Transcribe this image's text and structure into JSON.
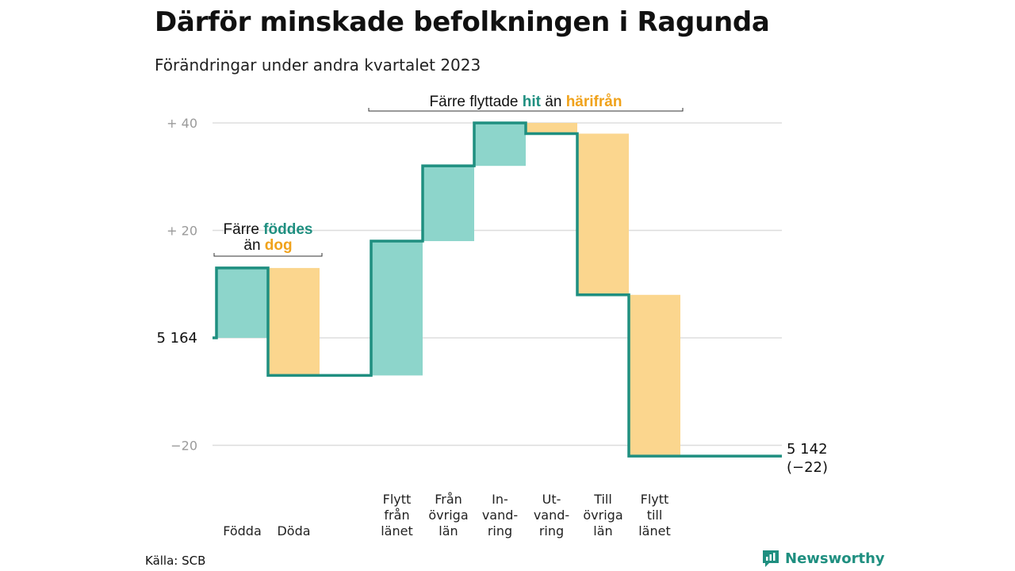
{
  "header": {
    "title": "Därför minskade befolkningen i Ragunda",
    "subtitle": "Förändringar under andra kvartalet 2023"
  },
  "footer": {
    "source": "Källa: SCB",
    "brand": "Newsworthy"
  },
  "colors": {
    "increase": "#8dd5cb",
    "decrease": "#fbd68e",
    "line": "#1f8f80",
    "accent_green": "#1f8f80",
    "accent_orange": "#f0a21b",
    "grid": "#dddddd"
  },
  "chart_data": {
    "type": "waterfall",
    "title": "Därför minskade befolkningen i Ragunda",
    "subtitle": "Förändringar under andra kvartalet 2023",
    "start_value": 5164,
    "end_value": 5142,
    "start_label": "5  164",
    "end_label_line1": "5 142",
    "end_label_line2": "(−22)",
    "ylim": [
      -22,
      40
    ],
    "grid": true,
    "y_ticks": [
      {
        "value": 40,
        "label": "+  40"
      },
      {
        "value": 20,
        "label": "+  20"
      },
      {
        "value": -20,
        "label": "−20"
      }
    ],
    "steps": [
      {
        "label": [
          "",
          "Födda"
        ],
        "value": 13
      },
      {
        "label": [
          "",
          "Döda"
        ],
        "value": -20
      },
      {
        "label": [
          "",
          ""
        ],
        "value": 0
      },
      {
        "label": [
          "Flytt",
          "från",
          "länet"
        ],
        "value": 25
      },
      {
        "label": [
          "Från",
          "övriga",
          "län"
        ],
        "value": 14
      },
      {
        "label": [
          "In-",
          "vand-",
          "ring"
        ],
        "value": 8
      },
      {
        "label": [
          "Ut-",
          "vand-",
          "ring"
        ],
        "value": -2
      },
      {
        "label": [
          "Till",
          "övriga",
          "län"
        ],
        "value": -30
      },
      {
        "label": [
          "Flytt",
          "till",
          "länet"
        ],
        "value": -30
      },
      {
        "label": [
          "",
          ""
        ],
        "value": 0
      },
      {
        "label": [
          "",
          ""
        ],
        "value": 0
      }
    ],
    "annotations": [
      {
        "id": "births",
        "line1_parts": [
          "Färre ",
          "föddes"
        ],
        "line2_parts": [
          "än ",
          "dog"
        ],
        "from_step": 0,
        "to_step": 1
      },
      {
        "id": "moves",
        "line1_parts": [
          "Färre flyttade ",
          "hit",
          " än ",
          "härifrån"
        ],
        "from_step": 3,
        "to_step": 8
      }
    ]
  }
}
